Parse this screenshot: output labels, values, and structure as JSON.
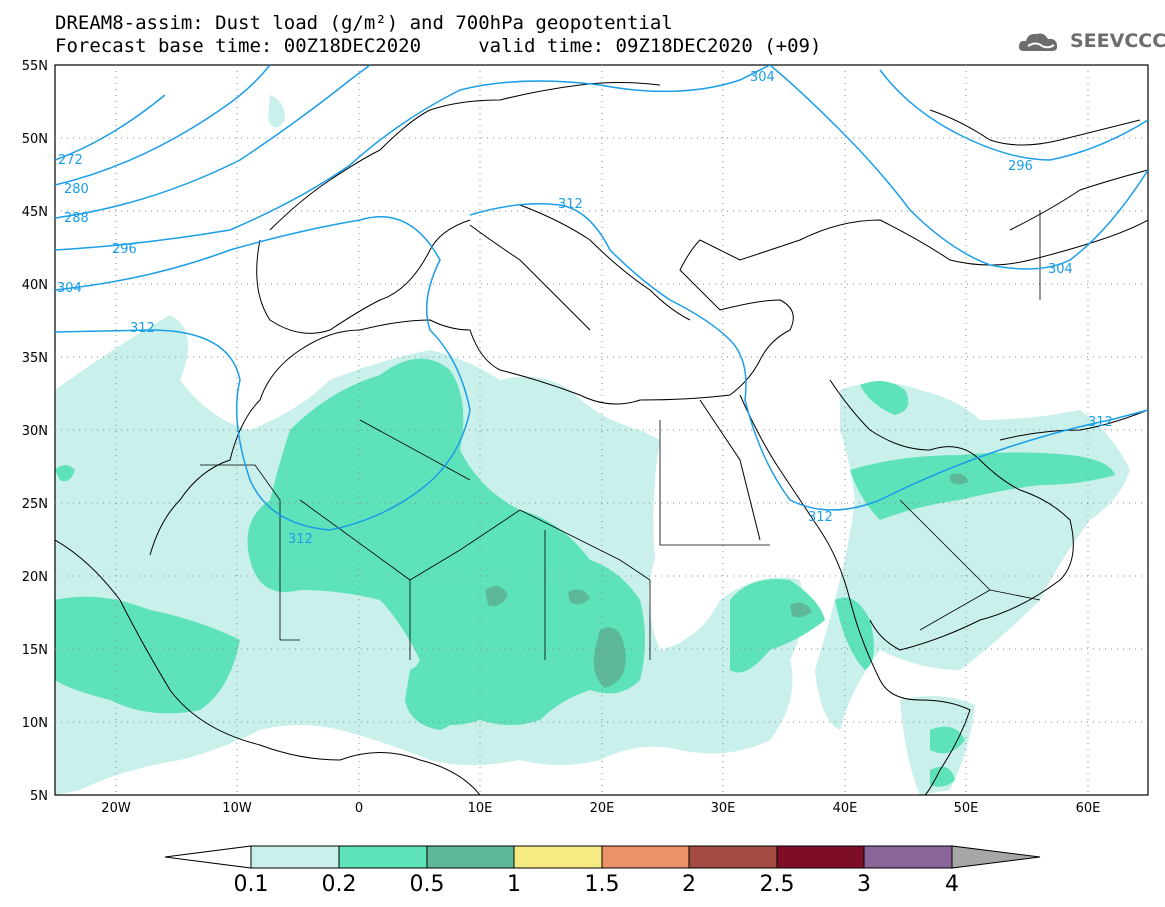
{
  "header": {
    "title_line1": "DREAM8-assim: Dust load (g/m²) and 700hPa geopotential",
    "title_line2": "Forecast base time: 00Z18DEC2020     valid time: 09Z18DEC2020 (+09)",
    "logo_text": "SEEVCCC"
  },
  "map": {
    "lon_ticks": [
      "20W",
      "10W",
      "0",
      "10E",
      "20E",
      "30E",
      "40E",
      "50E",
      "60E"
    ],
    "lat_ticks": [
      "55N",
      "50N",
      "45N",
      "40N",
      "35N",
      "30N",
      "25N",
      "20N",
      "15N",
      "10N",
      "5N"
    ],
    "contour_labels": [
      "272",
      "280",
      "288",
      "296",
      "304",
      "312",
      "312",
      "312",
      "304",
      "296",
      "304",
      "312",
      "312"
    ]
  },
  "colorbar": {
    "labels": [
      "0.1",
      "0.2",
      "0.5",
      "1",
      "1.5",
      "2",
      "2.5",
      "3",
      "4"
    ],
    "colors": [
      "#c9f0ea",
      "#5ee2b9",
      "#5cb898",
      "#f6ea82",
      "#eb926a",
      "#a44c41",
      "#7e0d28",
      "#8a6599",
      "#a7a7a7"
    ],
    "under_color": "#ffffff"
  },
  "legend": {
    "dust_light": "#c9f0ea",
    "dust_mid": "#5ee2b9",
    "dust_dark": "#5cb898",
    "contour_color": "#1a9ee8"
  }
}
